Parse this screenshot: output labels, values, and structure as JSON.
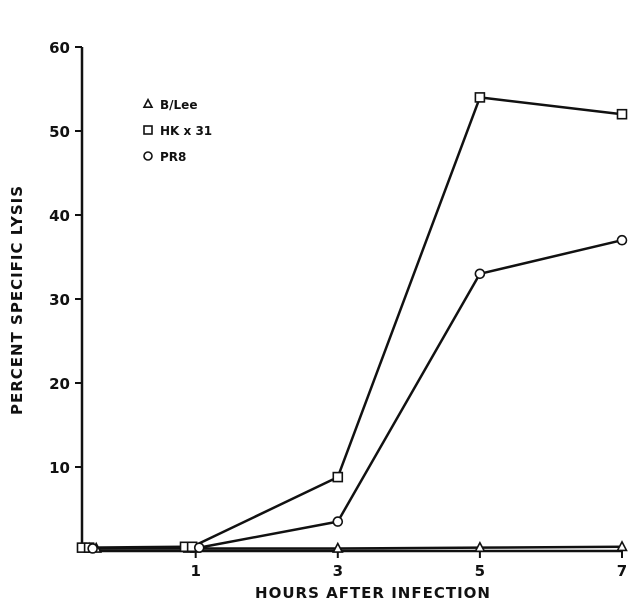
{
  "chart_data": {
    "type": "line",
    "title": "",
    "xlabel": "HOURS AFTER INFECTION",
    "ylabel": "PERCENT SPECIFIC LYSIS",
    "xlim": [
      -0.6,
      7
    ],
    "ylim": [
      0,
      60
    ],
    "x_ticks": [
      1,
      3,
      5,
      7
    ],
    "y_ticks": [
      10,
      20,
      30,
      40,
      50,
      60
    ],
    "grid": false,
    "legend_position": "top-left",
    "series": [
      {
        "name": "B/Lee",
        "marker": "triangle",
        "x": [
          -0.5,
          -0.4,
          0.9,
          1.0,
          3,
          5,
          7
        ],
        "y": [
          0.3,
          0.3,
          0.3,
          0.3,
          0.3,
          0.4,
          0.5
        ]
      },
      {
        "name": "HK x 31",
        "marker": "square",
        "x": [
          -0.6,
          -0.5,
          0.85,
          0.95,
          3,
          5,
          7
        ],
        "y": [
          0.4,
          0.4,
          0.5,
          0.5,
          8.8,
          54,
          52
        ]
      },
      {
        "name": "PR8",
        "marker": "circle",
        "x": [
          -0.45,
          1.05,
          3,
          5,
          7
        ],
        "y": [
          0.3,
          0.4,
          3.5,
          33,
          37
        ]
      }
    ]
  }
}
